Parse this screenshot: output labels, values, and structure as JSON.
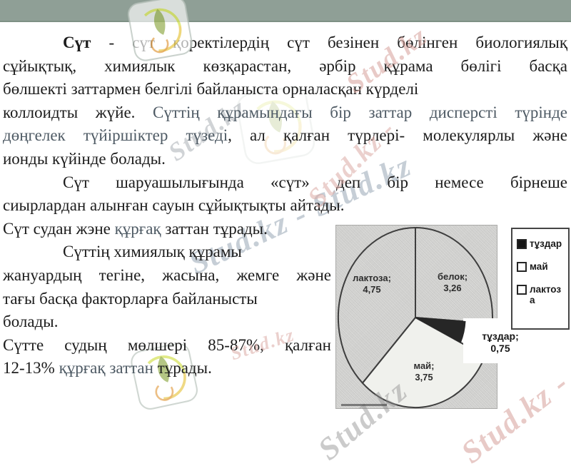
{
  "header": {
    "bar_color": "#8f9f96",
    "edge_color": "#7e9085"
  },
  "watermarks": [
    {
      "text": "Stud.kz",
      "color": "#d9a8a2",
      "opacity": 0.6,
      "layer": "over"
    },
    {
      "text": "Stud.kz",
      "color": "#a3a9ae",
      "opacity": 0.5,
      "layer": "under"
    },
    {
      "text": "Stud.kz -",
      "color": "#dcaba5",
      "opacity": 0.55,
      "layer": "over"
    },
    {
      "text": "Stud.kz - Stud.kz",
      "color": "#8e9fae",
      "opacity": 0.5,
      "layer": "under"
    },
    {
      "text": "Stud.kz",
      "color": "#8d8d8d",
      "opacity": 0.45,
      "layer": "over"
    },
    {
      "text": "Stud.kz -",
      "color": "#d9a8a2",
      "opacity": 0.6,
      "layer": "over"
    },
    {
      "text": "Stud.kz",
      "color": "#dcaba5",
      "opacity": 0.55,
      "layer": "over"
    }
  ],
  "body": {
    "text_color": "#1c1c1c",
    "muted_color": "#4e5a64",
    "lines": [
      {
        "just": true,
        "ind": true,
        "segments": [
          {
            "t": "Сүт",
            "b": true
          },
          {
            "t": " - сүт қоректілердің сүт безінен бөлінген биологиялық"
          }
        ]
      },
      {
        "just": true,
        "segments": [
          {
            "t": "сұйықтық, химиялык көзқарастан, әрбір құрама бөлігі басқа"
          }
        ]
      },
      {
        "segments": [
          {
            "t": "бөлшекті заттармен белгілі байланыста орналасқан күрделі"
          }
        ]
      },
      {
        "just": true,
        "segments": [
          {
            "t": "коллоидты жүйе. "
          },
          {
            "t": "Сүттің құрамындағы бір заттар дисперсті түрінде",
            "m": true
          }
        ]
      },
      {
        "just": true,
        "segments": [
          {
            "t": "дөңгелек түйіршіктер түзеді",
            "m": true
          },
          {
            "t": ", ал қалған түрлері- молекулярлы және"
          }
        ]
      },
      {
        "segments": [
          {
            "t": "ионды күйінде болады."
          }
        ]
      },
      {
        "just": true,
        "ind": true,
        "segments": [
          {
            "t": "Сүт шаруашылығында «сүт» деп бір немесе бірнеше"
          }
        ]
      },
      {
        "segments": [
          {
            "t": "сиырлардан алынған сауын сұйықтықты айтады."
          }
        ]
      },
      {
        "segments": [
          {
            "t": "Сүт судан жэне "
          },
          {
            "t": "құрғақ",
            "m": true
          },
          {
            "t": " заттан тұрады."
          }
        ]
      },
      {
        "ind": true,
        "nar": true,
        "segments": [
          {
            "t": "Сүттің химиялық құрамы"
          }
        ]
      },
      {
        "just": true,
        "nar": true,
        "segments": [
          {
            "t": "жануардың тегіне, жасына, жемге және"
          }
        ]
      },
      {
        "nar": true,
        "segments": [
          {
            "t": "тағы басқа факторларға байланысты"
          }
        ]
      },
      {
        "nar": true,
        "segments": [
          {
            "t": "болады."
          }
        ]
      },
      {
        "just": true,
        "nar": true,
        "segments": [
          {
            "t": "Сүтте судың мөлшері 85-87%, қалған"
          }
        ]
      },
      {
        "nar": true,
        "segments": [
          {
            "t": "12-13% "
          },
          {
            "t": "құрғақ заттан",
            "m": true
          },
          {
            "t": " тұрады."
          }
        ]
      }
    ]
  },
  "chart_data": {
    "type": "pie",
    "rotation": "starts at 12 o'clock, clockwise",
    "slices": [
      {
        "label": "белок",
        "value": 3.26,
        "value_text": "3,26",
        "fill": "none"
      },
      {
        "label": "тұздар",
        "value": 0.75,
        "value_text": "0,75",
        "fill": "#262626",
        "exploded": true
      },
      {
        "label": "май",
        "value": 3.75,
        "value_text": "3,75",
        "fill": "#f0f1ed"
      },
      {
        "label": "лактоза",
        "value": 4.75,
        "value_text": "4,75",
        "fill": "none"
      }
    ],
    "plot_bg": "#d4d4d2",
    "outline_color": "#3e3e3e",
    "legend": {
      "position": "right",
      "items": [
        {
          "label": "тұздар",
          "filled": true
        },
        {
          "label": "май",
          "filled": false
        },
        {
          "label": "лактоза",
          "filled": false
        }
      ]
    }
  }
}
